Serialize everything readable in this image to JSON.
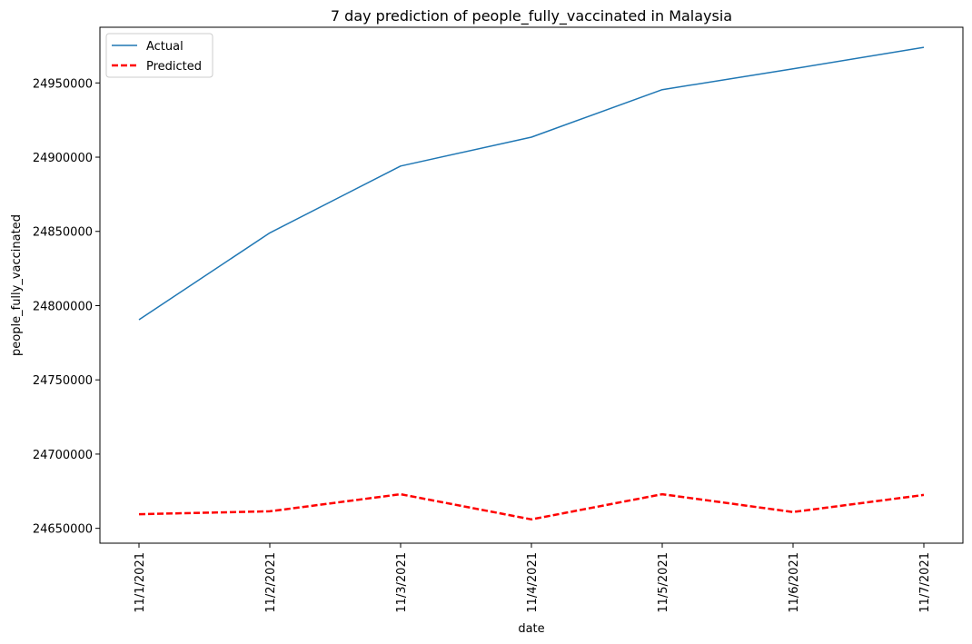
{
  "chart_data": {
    "type": "line",
    "title": "7 day prediction of people_fully_vaccinated in Malaysia",
    "xlabel": "date",
    "ylabel": "people_fully_vaccinated",
    "categories": [
      "11/1/2021",
      "11/2/2021",
      "11/3/2021",
      "11/4/2021",
      "11/5/2021",
      "11/6/2021",
      "11/7/2021"
    ],
    "yticks": [
      "24650000",
      "24700000",
      "24750000",
      "24800000",
      "24850000",
      "24900000",
      "24950000"
    ],
    "ylim": [
      24640000,
      24987500
    ],
    "grid": false,
    "legend": "top-left",
    "series": [
      {
        "name": "Actual",
        "color": "#1f77b4",
        "style": "solid",
        "values": [
          24790500,
          24849000,
          24894000,
          24913500,
          24945500,
          24959500,
          24974000
        ]
      },
      {
        "name": "Predicted",
        "color": "#ff0000",
        "style": "dashed",
        "values": [
          24659500,
          24661500,
          24673000,
          24656000,
          24673000,
          24661000,
          24672500
        ]
      }
    ]
  }
}
